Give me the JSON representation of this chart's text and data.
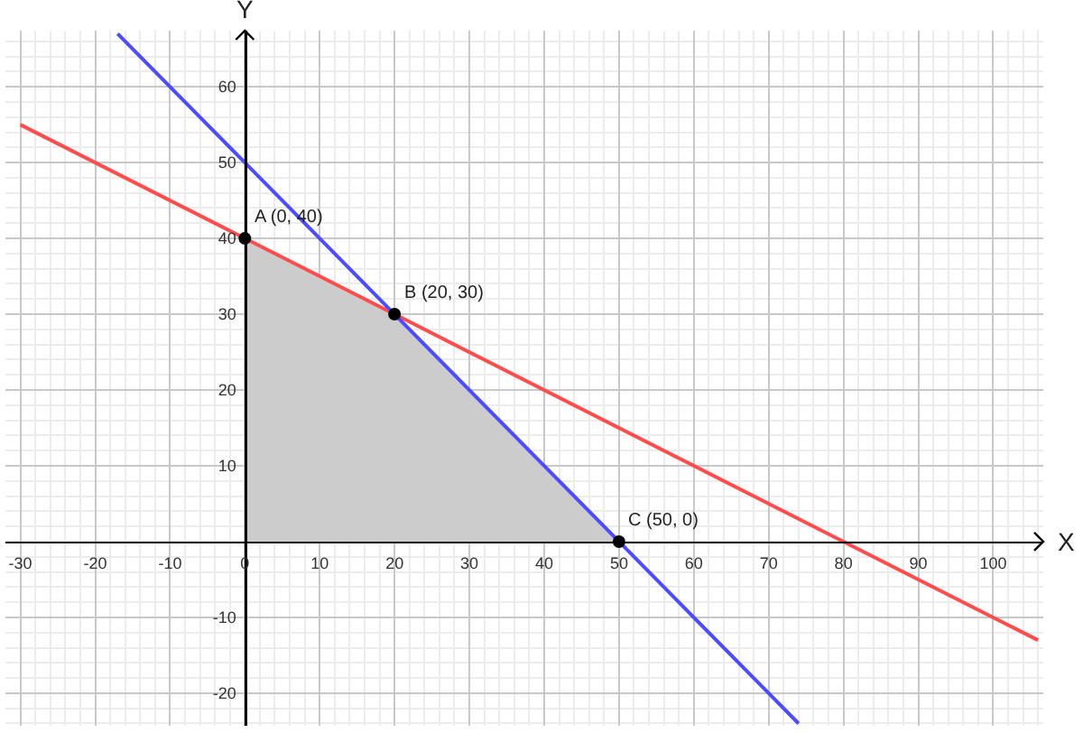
{
  "chart_data": {
    "type": "line",
    "xlabel": "X",
    "ylabel": "Y",
    "xlim": [
      -32,
      106.7
    ],
    "ylim": [
      -24.3,
      67.4
    ],
    "xticks": [
      -30,
      -20,
      -10,
      0,
      10,
      20,
      30,
      40,
      50,
      60,
      70,
      80,
      90,
      100
    ],
    "yticks": [
      -20,
      -10,
      10,
      20,
      30,
      40,
      50,
      60
    ],
    "grid": true,
    "series": [
      {
        "type": "area",
        "color": "#cccccc",
        "x": [
          0,
          20,
          50
        ],
        "values": [
          40,
          30,
          0
        ]
      },
      {
        "type": "line",
        "color": "#ff4d4d",
        "x": [
          -30,
          0,
          20,
          80,
          100,
          106
        ],
        "values": [
          55,
          40,
          30,
          0,
          -10,
          -13
        ]
      },
      {
        "type": "line",
        "color": "#4d4dff",
        "x": [
          -17,
          0,
          20,
          50,
          70,
          74
        ],
        "values": [
          67,
          50,
          30,
          0,
          -20,
          -24
        ]
      },
      {
        "type": "scatter",
        "color": "#000000",
        "marker": "circle",
        "x": [
          0,
          20,
          50
        ],
        "values": [
          40,
          30,
          0
        ]
      }
    ],
    "annotations": [
      {
        "text": "A (0, 40)",
        "x": 0,
        "y": 40
      },
      {
        "text": "B (20, 30)",
        "x": 20,
        "y": 30
      },
      {
        "text": "C (50, 0)",
        "x": 50,
        "y": 0
      }
    ]
  }
}
